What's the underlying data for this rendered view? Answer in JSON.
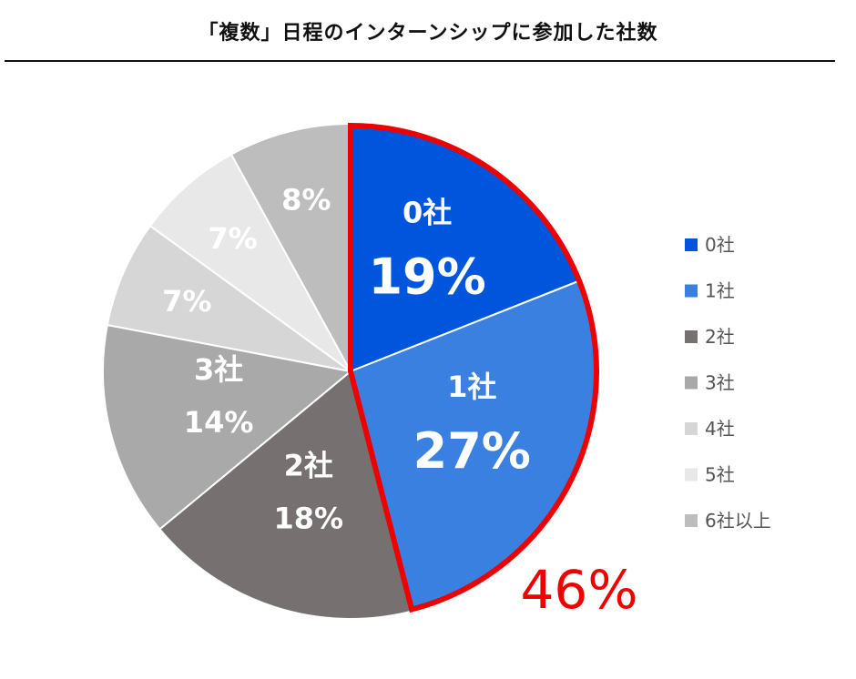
{
  "title": "「複数」日程のインターンシップに参加した社数",
  "chart_data": {
    "type": "pie",
    "title": "「複数」日程のインターンシップに参加した社数",
    "slices": [
      {
        "category": "0社",
        "value": 19,
        "label": "19%",
        "color": "#0055dd",
        "show_name": true
      },
      {
        "category": "1社",
        "value": 27,
        "label": "27%",
        "color": "#3a80e0",
        "show_name": true
      },
      {
        "category": "2社",
        "value": 18,
        "label": "18%",
        "color": "#767070",
        "show_name": true
      },
      {
        "category": "3社",
        "value": 14,
        "label": "14%",
        "color": "#a9a9a9",
        "show_name": true
      },
      {
        "category": "4社",
        "value": 7,
        "label": "7%",
        "color": "#d6d6d6",
        "show_name": false
      },
      {
        "category": "5社",
        "value": 7,
        "label": "7%",
        "color": "#e8e8e8",
        "show_name": false
      },
      {
        "category": "6社以上",
        "value": 8,
        "label": "8%",
        "color": "#bdbdbd",
        "show_name": false
      }
    ],
    "legend": [
      "0社",
      "1社",
      "2社",
      "3社",
      "4社",
      "5社",
      "6社以上"
    ],
    "legend_position": "right",
    "highlight": {
      "categories": [
        "0社",
        "1社"
      ],
      "label": "46%",
      "color": "#ee0000"
    }
  }
}
